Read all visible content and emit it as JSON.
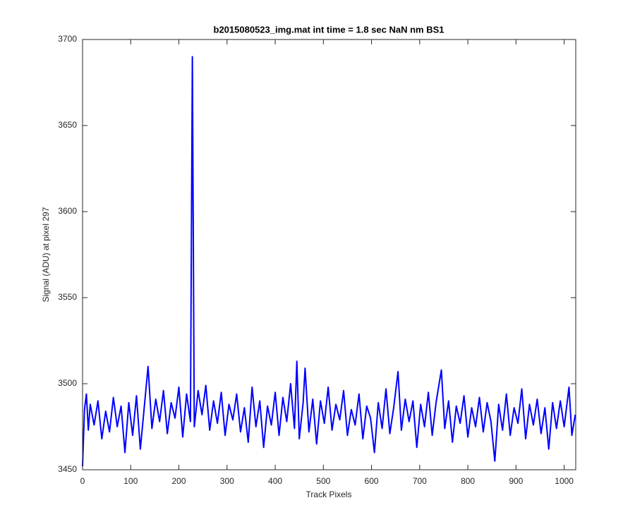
{
  "chart_data": {
    "type": "line",
    "title": "b2015080523_img.mat int time = 1.8 sec  NaN nm BS1",
    "x_label": "Track Pixels",
    "y_label": "Signal (ADU) at pixel 297",
    "xlim": [
      0,
      1024
    ],
    "ylim": [
      3450,
      3700
    ],
    "xticks": [
      0,
      100,
      200,
      300,
      400,
      500,
      600,
      700,
      800,
      900,
      1000
    ],
    "yticks": [
      3450,
      3500,
      3550,
      3600,
      3650,
      3700
    ],
    "x": [
      0,
      4,
      8,
      12,
      16,
      24,
      32,
      40,
      48,
      56,
      64,
      72,
      80,
      88,
      96,
      104,
      112,
      120,
      128,
      136,
      144,
      152,
      160,
      168,
      176,
      184,
      192,
      200,
      208,
      216,
      224,
      228,
      232,
      240,
      248,
      256,
      264,
      272,
      280,
      288,
      296,
      304,
      312,
      320,
      328,
      336,
      344,
      352,
      360,
      368,
      376,
      384,
      392,
      400,
      408,
      416,
      424,
      432,
      440,
      445,
      450,
      458,
      462,
      470,
      478,
      486,
      494,
      502,
      510,
      518,
      526,
      534,
      542,
      550,
      558,
      566,
      574,
      582,
      590,
      598,
      606,
      614,
      622,
      630,
      638,
      646,
      655,
      662,
      670,
      678,
      686,
      694,
      702,
      710,
      718,
      726,
      734,
      745,
      752,
      760,
      768,
      776,
      784,
      792,
      800,
      808,
      816,
      824,
      832,
      840,
      848,
      856,
      864,
      872,
      880,
      888,
      896,
      904,
      912,
      920,
      928,
      936,
      944,
      952,
      960,
      968,
      976,
      984,
      992,
      1000,
      1010,
      1016,
      1023
    ],
    "series": [
      {
        "color": "#0000ff",
        "values": [
          3452,
          3485,
          3494,
          3473,
          3488,
          3476,
          3490,
          3468,
          3484,
          3472,
          3492,
          3475,
          3487,
          3460,
          3489,
          3470,
          3493,
          3462,
          3486,
          3510,
          3474,
          3491,
          3478,
          3496,
          3471,
          3489,
          3480,
          3498,
          3469,
          3494,
          3478,
          3690,
          3475,
          3496,
          3482,
          3499,
          3473,
          3490,
          3477,
          3495,
          3470,
          3488,
          3479,
          3494,
          3472,
          3486,
          3466,
          3498,
          3475,
          3490,
          3463,
          3487,
          3476,
          3495,
          3470,
          3492,
          3478,
          3500,
          3474,
          3513,
          3468,
          3489,
          3509,
          3472,
          3491,
          3465,
          3490,
          3477,
          3498,
          3473,
          3488,
          3479,
          3496,
          3470,
          3485,
          3476,
          3494,
          3468,
          3487,
          3480,
          3460,
          3489,
          3474,
          3497,
          3471,
          3486,
          3507,
          3473,
          3491,
          3478,
          3490,
          3463,
          3488,
          3475,
          3495,
          3470,
          3489,
          3508,
          3474,
          3490,
          3466,
          3487,
          3477,
          3493,
          3469,
          3486,
          3475,
          3492,
          3472,
          3489,
          3478,
          3455,
          3488,
          3473,
          3494,
          3470,
          3486,
          3477,
          3497,
          3468,
          3488,
          3476,
          3491,
          3471,
          3486,
          3462,
          3489,
          3474,
          3490,
          3475,
          3498,
          3470,
          3482
        ]
      }
    ]
  }
}
